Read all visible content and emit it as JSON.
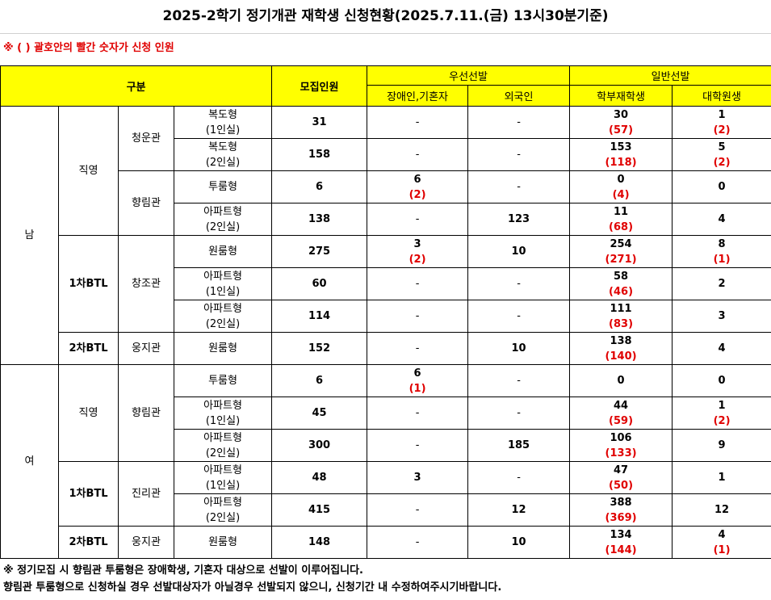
{
  "title": "2025-2학기 정기개관 재학생 신청현황(2025.7.11.(금) 13시30분기준)",
  "note_top": "※ ( ) 괄호안의 빨간 숫자가 신청 인원",
  "header": {
    "division": "구분",
    "capacity": "모집인원",
    "priority": "우선선발",
    "general": "일반선발",
    "disabled": "장애인,기혼자",
    "foreigner": "외국인",
    "undergrad": "학부재학생",
    "graduate": "대학원생"
  },
  "groups": {
    "male": "남",
    "female": "여"
  },
  "rows": [
    {
      "gender": "남",
      "op": "직영",
      "hall": "청운관",
      "type": [
        "복도형",
        "(1인실)"
      ],
      "cap": "31",
      "dis": "-",
      "dis_app": "",
      "for": "-",
      "ug": "30",
      "ug_app": "(57)",
      "gr": "1",
      "gr_app": "(2)"
    },
    {
      "type": [
        "복도형",
        "(2인실)"
      ],
      "cap": "158",
      "dis": "-",
      "dis_app": "",
      "for": "-",
      "ug": "153",
      "ug_app": "(118)",
      "gr": "5",
      "gr_app": "(2)"
    },
    {
      "hall": "향림관",
      "type": [
        "투룸형"
      ],
      "cap": "6",
      "dis": "6",
      "dis_app": "(2)",
      "for": "-",
      "ug": "0",
      "ug_app": "(4)",
      "gr": "0",
      "gr_app": ""
    },
    {
      "type": [
        "아파트형",
        "(2인실)"
      ],
      "cap": "138",
      "dis": "-",
      "dis_app": "",
      "for": "123",
      "ug": "11",
      "ug_app": "(68)",
      "gr": "4",
      "gr_app": ""
    },
    {
      "op": "1차BTL",
      "hall": "창조관",
      "type": [
        "원룸형"
      ],
      "cap": "275",
      "dis": "3",
      "dis_app": "(2)",
      "for": "10",
      "ug": "254",
      "ug_app": "(271)",
      "gr": "8",
      "gr_app": "(1)"
    },
    {
      "type": [
        "아파트형",
        "(1인실)"
      ],
      "cap": "60",
      "dis": "-",
      "dis_app": "",
      "for": "-",
      "ug": "58",
      "ug_app": "(46)",
      "gr": "2",
      "gr_app": ""
    },
    {
      "type": [
        "아파트형",
        "(2인실)"
      ],
      "cap": "114",
      "dis": "-",
      "dis_app": "",
      "for": "-",
      "ug": "111",
      "ug_app": "(83)",
      "gr": "3",
      "gr_app": ""
    },
    {
      "op": "2차BTL",
      "hall": "웅지관",
      "type": [
        "원룸형"
      ],
      "cap": "152",
      "dis": "-",
      "dis_app": "",
      "for": "10",
      "ug": "138",
      "ug_app": "(140)",
      "gr": "4",
      "gr_app": ""
    },
    {
      "gender": "여",
      "op": "직영",
      "hall": "향림관",
      "type": [
        "투룸형"
      ],
      "cap": "6",
      "dis": "6",
      "dis_app": "(1)",
      "for": "-",
      "ug": "0",
      "ug_app": "",
      "gr": "0",
      "gr_app": ""
    },
    {
      "type": [
        "아파트형",
        "(1인실)"
      ],
      "cap": "45",
      "dis": "-",
      "dis_app": "",
      "for": "-",
      "ug": "44",
      "ug_app": "(59)",
      "gr": "1",
      "gr_app": "(2)"
    },
    {
      "type": [
        "아파트형",
        "(2인실)"
      ],
      "cap": "300",
      "dis": "-",
      "dis_app": "",
      "for": "185",
      "ug": "106",
      "ug_app": "(133)",
      "gr": "9",
      "gr_app": ""
    },
    {
      "op": "1차BTL",
      "hall": "진리관",
      "type": [
        "아파트형",
        "(1인실)"
      ],
      "cap": "48",
      "dis": "3",
      "dis_app": "",
      "for": "-",
      "ug": "47",
      "ug_app": "(50)",
      "gr": "1",
      "gr_app": ""
    },
    {
      "type": [
        "아파트형",
        "(2인실)"
      ],
      "cap": "415",
      "dis": "-",
      "dis_app": "",
      "for": "12",
      "ug": "388",
      "ug_app": "(369)",
      "gr": "12",
      "gr_app": ""
    },
    {
      "op": "2차BTL",
      "hall": "웅지관",
      "type": [
        "원룸형"
      ],
      "cap": "148",
      "dis": "-",
      "dis_app": "",
      "for": "10",
      "ug": "134",
      "ug_app": "(144)",
      "gr": "4",
      "gr_app": "(1)"
    }
  ],
  "footnotes": [
    "※ 정기모집 시 향림관 투룸형은 장애학생, 기혼자 대상으로 선발이 이루어집니다.",
    "향림관 투룸형으로 신청하실 경우 선발대상자가 아닐경우 선발되지 않으니, 신청기간 내 수정하여주시기바랍니다."
  ],
  "colors": {
    "header_bg": "#ffff00",
    "applicant_red": "#e00000",
    "note_red": "#e00000"
  }
}
